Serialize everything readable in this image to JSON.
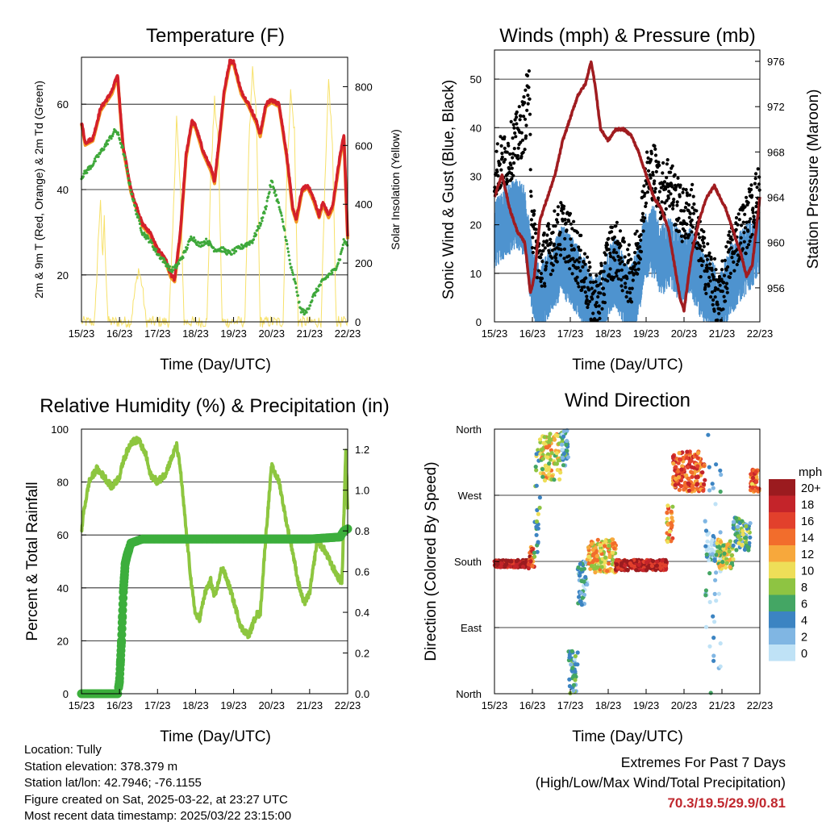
{
  "x_ticks": [
    "15/23",
    "16/23",
    "17/23",
    "18/23",
    "19/23",
    "20/23",
    "21/23",
    "22/23"
  ],
  "x_label": "Time (Day/UTC)",
  "colors": {
    "t2m": "#d4202a",
    "t9m": "#f39a24",
    "td": "#3ea83a",
    "solar": "#f7e16a",
    "wind": "#4e93cf",
    "gust": "#000000",
    "pressure": "#a01c20",
    "rh": "#8dc63f",
    "precip": "#3cae3c",
    "extremes": "#c0282e"
  },
  "panels": {
    "temperature": {
      "title": "Temperature (F)",
      "ylabel_left": "2m & 9m T (Red, Orange) & 2m Td (Green)",
      "ylabel_right": "Solar Insolation (Yellow)",
      "left_ticks": [
        "20",
        "40",
        "60"
      ],
      "right_ticks": [
        "0",
        "200",
        "400",
        "600",
        "800"
      ]
    },
    "winds": {
      "title": "Winds (mph) & Pressure (mb)",
      "ylabel_left": "Sonic Wind & Gust (Blue, Black)",
      "ylabel_right": "Station Pressure (Maroon)",
      "left_ticks": [
        "0",
        "10",
        "20",
        "30",
        "40",
        "50"
      ],
      "right_ticks": [
        "956",
        "960",
        "964",
        "968",
        "972",
        "976"
      ]
    },
    "humidity": {
      "title": "Relative Humidity (%) & Precipitation (in)",
      "ylabel_left": "Percent & Total Rainfall",
      "left_ticks": [
        "0",
        "20",
        "40",
        "60",
        "80",
        "100"
      ],
      "right_ticks": [
        "0.0",
        "0.2",
        "0.4",
        "0.6",
        "0.8",
        "1.0",
        "1.2"
      ]
    },
    "direction": {
      "title": "Wind Direction",
      "ylabel_left": "Direction (Colored By Speed)",
      "dir_ticks": [
        "North",
        "East",
        "South",
        "West",
        "North"
      ],
      "legend_unit": "mph",
      "legend_labels": [
        "20+",
        "18",
        "16",
        "14",
        "12",
        "10",
        "8",
        "6",
        "4",
        "2",
        "0"
      ],
      "legend_colors": [
        "#9b1b1f",
        "#c4242a",
        "#e2402c",
        "#f26d2c",
        "#f7a83c",
        "#eede58",
        "#8ec442",
        "#44a664",
        "#3c84c2",
        "#80b6e3",
        "#bfe2f6"
      ]
    }
  },
  "chart_data": [
    {
      "type": "line",
      "title": "Temperature (F)",
      "xlabel": "Time (Day/UTC)",
      "ylabel": "2m & 9m T (Red, Orange) & 2m Td (Green)",
      "ylabel_right": "Solar Insolation (Yellow)",
      "x_categories": [
        "15/23",
        "16/23",
        "17/23",
        "18/23",
        "19/23",
        "20/23",
        "21/23",
        "22/23"
      ],
      "xlim_days": [
        0,
        7
      ],
      "ylim": [
        9,
        71
      ],
      "ylim_right": [
        0,
        900
      ],
      "series": [
        {
          "name": "2m T",
          "axis": "left",
          "x": [
            0,
            0.1,
            0.3,
            0.5,
            0.8,
            0.95,
            1.05,
            1.1,
            1.3,
            1.6,
            1.8,
            2.0,
            2.2,
            2.35,
            2.45,
            2.6,
            2.75,
            2.9,
            3.0,
            3.2,
            3.4,
            3.5,
            3.6,
            3.75,
            3.9,
            4.0,
            4.2,
            4.4,
            4.6,
            4.7,
            4.85,
            5.0,
            5.2,
            5.4,
            5.55,
            5.65,
            5.8,
            5.95,
            6.1,
            6.25,
            6.35,
            6.5,
            6.6,
            6.7,
            6.8,
            6.9,
            7.0
          ],
          "y": [
            56,
            51,
            52,
            59,
            63,
            67,
            55,
            50,
            40,
            32,
            30,
            26,
            24,
            20,
            19,
            30,
            48,
            56,
            55,
            49,
            45,
            42,
            50,
            63,
            70,
            70,
            63,
            60,
            56,
            53,
            60,
            61,
            60,
            48,
            36,
            33,
            40,
            41,
            38,
            34,
            37,
            34,
            36,
            42,
            48,
            53,
            29
          ]
        },
        {
          "name": "2m Td",
          "axis": "left",
          "x": [
            0,
            0.3,
            0.6,
            0.9,
            1.0,
            1.1,
            1.25,
            1.4,
            1.6,
            1.8,
            2.0,
            2.2,
            2.35,
            2.5,
            2.7,
            2.9,
            3.1,
            3.3,
            3.5,
            3.7,
            3.9,
            4.1,
            4.3,
            4.5,
            4.6,
            4.75,
            4.85,
            5.0,
            5.2,
            5.35,
            5.5,
            5.65,
            5.75,
            5.9,
            6.1,
            6.3,
            6.5,
            6.65,
            6.8,
            6.9,
            7.0
          ],
          "y": [
            43,
            46,
            50,
            54,
            52,
            49,
            42,
            36,
            30,
            28,
            25,
            23,
            21,
            22,
            25,
            29,
            27,
            28,
            26,
            26,
            25,
            26,
            27,
            28,
            30,
            33,
            36,
            42,
            36,
            30,
            22,
            17,
            12,
            11,
            15,
            18,
            20,
            21,
            24,
            28,
            27
          ]
        },
        {
          "name": "Solar Insolation",
          "axis": "right",
          "x": [
            0,
            0.35,
            0.4,
            0.45,
            0.5,
            0.55,
            0.6,
            0.65,
            0.7,
            1.0,
            1.3,
            1.4,
            1.5,
            1.6,
            1.7,
            2.0,
            2.3,
            2.4,
            2.5,
            2.6,
            2.7,
            3.0,
            3.3,
            3.4,
            3.5,
            3.6,
            3.7,
            4.0,
            4.3,
            4.4,
            4.5,
            4.6,
            4.7,
            5.0,
            5.3,
            5.4,
            5.5,
            5.6,
            5.7,
            6.0,
            6.3,
            6.4,
            6.5,
            6.6,
            6.7,
            7.0
          ],
          "y": [
            0,
            0,
            150,
            300,
            420,
            200,
            350,
            150,
            0,
            0,
            0,
            100,
            180,
            120,
            0,
            0,
            0,
            300,
            700,
            450,
            0,
            0,
            0,
            500,
            750,
            600,
            0,
            0,
            0,
            600,
            850,
            700,
            0,
            0,
            0,
            500,
            780,
            650,
            0,
            0,
            0,
            450,
            820,
            600,
            0,
            0
          ]
        }
      ]
    },
    {
      "type": "line",
      "title": "Winds (mph) & Pressure (mb)",
      "xlabel": "Time (Day/UTC)",
      "ylabel": "Sonic Wind & Gust (Blue, Black)",
      "ylabel_right": "Station Pressure (Maroon)",
      "x_categories": [
        "15/23",
        "16/23",
        "17/23",
        "18/23",
        "19/23",
        "20/23",
        "21/23",
        "22/23"
      ],
      "xlim_days": [
        0,
        7
      ],
      "ylim": [
        0,
        56
      ],
      "ylim_right": [
        953,
        977
      ],
      "series": [
        {
          "name": "Sonic Wind",
          "axis": "left",
          "x": [
            0,
            0.3,
            0.6,
            0.8,
            1.0,
            1.2,
            1.4,
            1.6,
            1.8,
            2.0,
            2.2,
            2.4,
            2.6,
            2.8,
            3.0,
            3.2,
            3.4,
            3.6,
            3.8,
            4.0,
            4.2,
            4.4,
            4.6,
            4.8,
            5.0,
            5.2,
            5.4,
            5.6,
            5.8,
            5.9,
            6.0,
            6.2,
            6.4,
            6.6,
            6.8,
            7.0
          ],
          "y": [
            20,
            22,
            24,
            22,
            10,
            6,
            9,
            12,
            14,
            12,
            10,
            7,
            3,
            4,
            10,
            12,
            8,
            6,
            10,
            18,
            18,
            14,
            16,
            14,
            12,
            14,
            10,
            8,
            6,
            3,
            5,
            10,
            12,
            14,
            16,
            18
          ]
        },
        {
          "name": "Gust",
          "axis": "left",
          "x": [
            0,
            0.3,
            0.6,
            0.8,
            0.9,
            1.0,
            1.2,
            1.4,
            1.6,
            1.8,
            2.0,
            2.2,
            2.4,
            2.6,
            2.8,
            3.0,
            3.2,
            3.4,
            3.6,
            3.8,
            4.0,
            4.2,
            4.4,
            4.6,
            4.8,
            5.0,
            5.2,
            5.4,
            5.6,
            5.8,
            5.9,
            6.0,
            6.2,
            6.4,
            6.6,
            6.8,
            7.0
          ],
          "y": [
            32,
            34,
            38,
            42,
            50,
            20,
            12,
            15,
            18,
            20,
            17,
            14,
            10,
            4,
            6,
            14,
            16,
            12,
            10,
            16,
            30,
            32,
            27,
            30,
            25,
            22,
            24,
            16,
            12,
            8,
            3,
            7,
            14,
            18,
            20,
            24,
            28
          ]
        },
        {
          "name": "Station Pressure",
          "axis": "right",
          "x": [
            0,
            0.2,
            0.4,
            0.6,
            0.8,
            0.95,
            1.05,
            1.2,
            1.4,
            1.6,
            1.8,
            2.0,
            2.2,
            2.4,
            2.55,
            2.65,
            2.8,
            3.0,
            3.2,
            3.4,
            3.6,
            3.8,
            4.0,
            4.2,
            4.4,
            4.6,
            4.8,
            4.9,
            5.0,
            5.2,
            5.4,
            5.6,
            5.8,
            5.95,
            6.1,
            6.3,
            6.5,
            6.65,
            6.8,
            6.9,
            7.0
          ],
          "y": [
            964,
            966,
            963,
            961,
            960,
            955.5,
            957,
            962,
            964,
            966,
            969,
            971,
            973,
            974,
            976,
            974,
            970,
            969,
            970,
            970,
            969.5,
            968,
            966,
            964,
            963,
            961,
            957,
            955,
            954,
            959,
            962,
            964,
            965,
            964,
            963,
            961,
            959,
            957,
            958,
            961,
            964
          ]
        }
      ]
    },
    {
      "type": "line",
      "title": "Relative Humidity (%) & Precipitation (in)",
      "xlabel": "Time (Day/UTC)",
      "ylabel": "Percent & Total Rainfall",
      "x_categories": [
        "15/23",
        "16/23",
        "17/23",
        "18/23",
        "19/23",
        "20/23",
        "21/23",
        "22/23"
      ],
      "xlim_days": [
        0,
        7
      ],
      "ylim": [
        0,
        100
      ],
      "ylim_right": [
        0,
        1.3
      ],
      "series": [
        {
          "name": "Relative Humidity",
          "axis": "left",
          "x": [
            0,
            0.05,
            0.2,
            0.4,
            0.6,
            0.8,
            1.0,
            1.1,
            1.3,
            1.5,
            1.7,
            1.8,
            2.0,
            2.2,
            2.4,
            2.5,
            2.6,
            2.75,
            2.9,
            3.0,
            3.1,
            3.25,
            3.4,
            3.5,
            3.7,
            3.9,
            4.0,
            4.2,
            4.4,
            4.6,
            4.7,
            4.85,
            5.0,
            5.2,
            5.4,
            5.55,
            5.7,
            5.85,
            6.0,
            6.2,
            6.4,
            6.6,
            6.75,
            6.85,
            6.95,
            7.0
          ],
          "y": [
            61,
            68,
            80,
            85,
            82,
            78,
            82,
            88,
            95,
            96,
            90,
            83,
            80,
            83,
            90,
            94,
            85,
            62,
            40,
            30,
            28,
            38,
            43,
            36,
            48,
            40,
            35,
            25,
            22,
            30,
            30,
            60,
            86,
            80,
            64,
            54,
            42,
            34,
            38,
            58,
            54,
            48,
            44,
            42,
            92,
            70
          ]
        },
        {
          "name": "Total Rainfall",
          "axis": "right",
          "x": [
            0,
            0.95,
            1.0,
            1.05,
            1.1,
            1.15,
            1.2,
            1.3,
            1.6,
            2.0,
            3.0,
            4.0,
            5.0,
            6.0,
            6.8,
            6.9,
            7.0
          ],
          "y": [
            0,
            0,
            0.06,
            0.25,
            0.5,
            0.64,
            0.68,
            0.74,
            0.76,
            0.76,
            0.76,
            0.76,
            0.76,
            0.76,
            0.77,
            0.8,
            0.81
          ]
        }
      ]
    },
    {
      "type": "scatter",
      "title": "Wind Direction",
      "xlabel": "Time (Day/UTC)",
      "ylabel": "Direction (Colored By Speed)",
      "x_categories": [
        "15/23",
        "16/23",
        "17/23",
        "18/23",
        "19/23",
        "20/23",
        "21/23",
        "22/23"
      ],
      "xlim_days": [
        0,
        7
      ],
      "ylim_deg": [
        0,
        360
      ],
      "direction_labels": [
        "North",
        "East",
        "South",
        "West",
        "North"
      ],
      "colorbar": {
        "unit": "mph",
        "labels": [
          "20+",
          "18",
          "16",
          "14",
          "12",
          "10",
          "8",
          "6",
          "4",
          "2",
          "0"
        ]
      },
      "clusters": [
        {
          "t": [
            0,
            0.9
          ],
          "dir": [
            172,
            182
          ],
          "speed": 19
        },
        {
          "t": [
            0.9,
            1.05
          ],
          "dir": [
            170,
            200
          ],
          "speed": 16
        },
        {
          "t": [
            1.05,
            1.2
          ],
          "dir": [
            180,
            355
          ],
          "speed": 6
        },
        {
          "t": [
            1.2,
            1.75
          ],
          "dir": [
            290,
            355
          ],
          "speed": 10
        },
        {
          "t": [
            1.75,
            1.95
          ],
          "dir": [
            310,
            360
          ],
          "speed": 4
        },
        {
          "t": [
            1.95,
            2.2
          ],
          "dir": [
            0,
            60
          ],
          "speed": 4
        },
        {
          "t": [
            2.2,
            2.45
          ],
          "dir": [
            120,
            180
          ],
          "speed": 3
        },
        {
          "t": [
            2.45,
            3.2
          ],
          "dir": [
            165,
            210
          ],
          "speed": 11
        },
        {
          "t": [
            3.2,
            4.55
          ],
          "dir": [
            168,
            182
          ],
          "speed": 19
        },
        {
          "t": [
            4.55,
            4.7
          ],
          "dir": [
            205,
            260
          ],
          "speed": 12
        },
        {
          "t": [
            4.7,
            5.55
          ],
          "dir": [
            275,
            330
          ],
          "speed": 15
        },
        {
          "t": [
            5.55,
            6.0
          ],
          "dir": [
            0,
            360
          ],
          "speed": 2
        },
        {
          "t": [
            5.85,
            6.3
          ],
          "dir": [
            170,
            210
          ],
          "speed": 9
        },
        {
          "t": [
            6.3,
            6.75
          ],
          "dir": [
            195,
            240
          ],
          "speed": 6
        },
        {
          "t": [
            6.75,
            7.0
          ],
          "dir": [
            275,
            305
          ],
          "speed": 14
        }
      ]
    }
  ],
  "info": {
    "location": "Location: Tully",
    "elevation": "Station elevation: 378.379 m",
    "latlon": "Station lat/lon: 42.7946; -76.1155",
    "created": "Figure created on Sat, 2025-03-22, at 23:27 UTC",
    "recent": "Most recent data timestamp: 2025/03/22 23:15:00"
  },
  "extremes": {
    "line1": "Extremes For Past 7 Days",
    "line2": "(High/Low/Max Wind/Total Precipitation)",
    "values": "70.3/19.5/29.9/0.81"
  }
}
